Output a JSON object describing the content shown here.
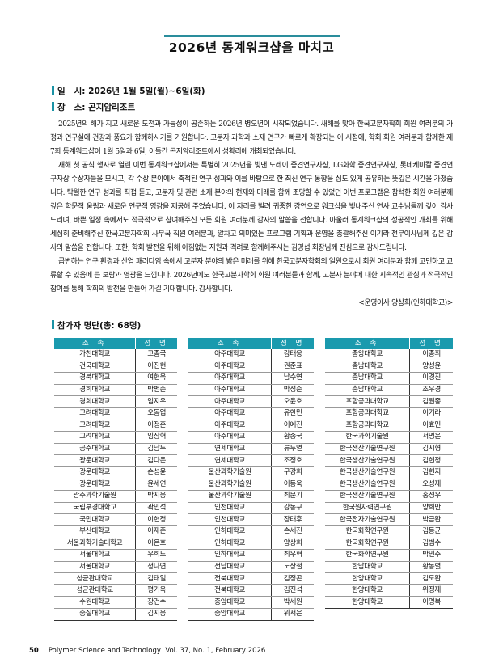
{
  "title": "2026년 동계워크샵을 마치고",
  "info": {
    "date": "일   시: 2026년 1월 5일(월)~6일(화)",
    "place": "장   소: 곤지암리조트"
  },
  "paragraphs": [
    "2025년의 해가 지고 새로운 도전과 가능성이 공존하는 2026년 병오년이 시작되었습니다. 새해를 맞아 한국고분자학회 회원 여러분의 가정과 연구실에 건강과 풍요가 함께하시기를 기원합니다. 고분자 과학과 소재 연구가 빠르게 확장되는 이 시점에, 학회 회원 여러분과 함께한 제7회 동계워크샵이 1월 5일과 6일, 이틀간 곤지암리조트에서 성황리에 개최되었습니다.",
    "새해 첫 공식 행사로 열린 이번 동계워크샵에서는 특별히 2025년을 빛낸 도레이 중견연구자상, LG화학 중견연구자상, 롯데케미칼 중견연구자상 수상자들을 모시고, 각 수상 분야에서 축적된 연구 성과와 이를 바탕으로 한 최신 연구 동향을 심도 있게 공유하는 뜻깊은 시간을 가졌습니다. 탁월한 연구 성과를 직접 듣고, 고분자 및 관련 소재 분야의 현재와 미래를 함께 조망할 수 있었던 이번 프로그램은 참석한 회원 여러분께 깊은 학문적 울림과 새로운 연구적 영감을 제공해 주었습니다. 이 자리를 빌려 귀중한 강연으로 워크샵을 빛내주신 연사 교수님들께 깊이 감사드리며, 바쁜 일정 속에서도 적극적으로 참여해주신 모든 회원 여러분께 감사의 말씀을 전합니다. 아울러 동계워크샵의 성공적인 개최를 위해 세심히 준비해주신 한국고분자학회 사무국 직원 여러분과, 알차고 의미있는 프로그램 기획과 운영을 총괄해주신 이기라 전무이사님께 깊은 감사의 말씀을 전합니다. 또한, 학회 발전을 위해 아낌없는 지원과 격려로 함께해주시는 김영섭 회장님께 진심으로 감사드립니다.",
    "급변하는 연구 환경과 산업 패러다임 속에서 고분자 분야의 밝은 미래를 위해 한국고분자학회의 일원으로서 회원 여러분과 함께 고민하고 교류할 수 있음에 큰 보람과 영광을 느낍니다. 2026년에도 한국고분자학회 회원 여러분들과 함께, 고분자 분야에 대한 지속적인 관심과 적극적인 참여를 통해 학회의 발전을 만들어 가길 기대합니다. 감사합니다."
  ],
  "signature": "<운영이사 양상희(인하대학교)>",
  "participants": {
    "heading": "참가자 명단(총: 68명)",
    "col_affiliation": "소 속",
    "col_name": "성 명",
    "tables": [
      [
        [
          "가천대학교",
          "고종국"
        ],
        [
          "건국대학교",
          "이진현"
        ],
        [
          "경북대학교",
          "여현욱"
        ],
        [
          "경희대학교",
          "박범준"
        ],
        [
          "경희대학교",
          "임지우"
        ],
        [
          "고려대학교",
          "오동엽"
        ],
        [
          "고려대학교",
          "이정훈"
        ],
        [
          "고려대학교",
          "임상혁"
        ],
        [
          "공주대학교",
          "김남두"
        ],
        [
          "광운대학교",
          "김다운"
        ],
        [
          "광운대학교",
          "손성윤"
        ],
        [
          "광운대학교",
          "윤세연"
        ],
        [
          "광주과학기술원",
          "박지웅"
        ],
        [
          "국립부경대학교",
          "곽민석"
        ],
        [
          "국민대학교",
          "이현정"
        ],
        [
          "부산대학교",
          "이재준"
        ],
        [
          "서울과학기술대학교",
          "이은호"
        ],
        [
          "서울대학교",
          "우희도"
        ],
        [
          "서울대학교",
          "정나연"
        ],
        [
          "성균관대학교",
          "김태일"
        ],
        [
          "성균관대학교",
          "평기욱"
        ],
        [
          "수원대학교",
          "장건수"
        ],
        [
          "숭실대학교",
          "김지웅"
        ]
      ],
      [
        [
          "아주대학교",
          "강태웅"
        ],
        [
          "아주대학교",
          "권준표"
        ],
        [
          "아주대학교",
          "남수연"
        ],
        [
          "아주대학교",
          "박성준"
        ],
        [
          "아주대학교",
          "오윤호"
        ],
        [
          "아주대학교",
          "유한민"
        ],
        [
          "아주대학교",
          "이예진"
        ],
        [
          "아주대학교",
          "황종국"
        ],
        [
          "연세대학교",
          "류두열"
        ],
        [
          "연세대학교",
          "조정호"
        ],
        [
          "울산과학기술원",
          "구강희"
        ],
        [
          "울산과학기술원",
          "이동욱"
        ],
        [
          "울산과학기술원",
          "최문기"
        ],
        [
          "인천대학교",
          "강동구"
        ],
        [
          "인천대학교",
          "장태후"
        ],
        [
          "인하대학교",
          "손세진"
        ],
        [
          "인하대학교",
          "양상희"
        ],
        [
          "인하대학교",
          "최우혁"
        ],
        [
          "전남대학교",
          "노상철"
        ],
        [
          "전북대학교",
          "김정곤"
        ],
        [
          "전북대학교",
          "김진석"
        ],
        [
          "중앙대학교",
          "박세원"
        ],
        [
          "중앙대학교",
          "위서은"
        ]
      ],
      [
        [
          "중앙대학교",
          "이종휘"
        ],
        [
          "충남대학교",
          "양성윤"
        ],
        [
          "충남대학교",
          "이경진"
        ],
        [
          "충남대학교",
          "조우경"
        ],
        [
          "포항공과대학교",
          "김원종"
        ],
        [
          "포항공과대학교",
          "이기라"
        ],
        [
          "포항공과대학교",
          "이효민"
        ],
        [
          "한국과학기술원",
          "서명은"
        ],
        [
          "한국생산기술연구원",
          "김시형"
        ],
        [
          "한국생산기술연구원",
          "김현정"
        ],
        [
          "한국생산기술연구원",
          "김현지"
        ],
        [
          "한국생산기술연구원",
          "오성재"
        ],
        [
          "한국생산기술연구원",
          "홍성우"
        ],
        [
          "한국원자력연구원",
          "양희만"
        ],
        [
          "한국전자기술연구원",
          "박금환"
        ],
        [
          "한국화학연구원",
          "김동균"
        ],
        [
          "한국화학연구원",
          "김범수"
        ],
        [
          "한국화학연구원",
          "박민주"
        ],
        [
          "한남대학교",
          "황동렬"
        ],
        [
          "한양대학교",
          "김도환"
        ],
        [
          "한양대학교",
          "위정재"
        ],
        [
          "한양대학교",
          "이명복"
        ]
      ]
    ]
  },
  "footer": {
    "page_number": "50",
    "journal": "Polymer Science and Technology  Vol. 37, No. 1, February 2026"
  },
  "colors": {
    "accent": "#1a9aae"
  }
}
